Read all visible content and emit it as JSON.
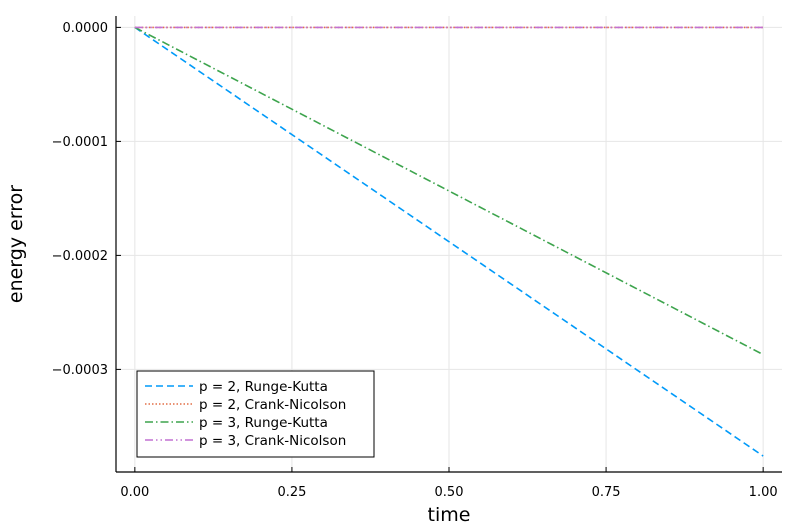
{
  "chart_data": {
    "type": "line",
    "xlabel": "time",
    "ylabel": "energy error",
    "xlim": [
      -0.03,
      1.03
    ],
    "ylim": [
      -0.00039,
      1e-05
    ],
    "xticks": [
      0.0,
      0.25,
      0.5,
      0.75,
      1.0
    ],
    "xtick_labels": [
      "0.00",
      "0.25",
      "0.50",
      "0.75",
      "1.00"
    ],
    "yticks": [
      0.0,
      -0.0001,
      -0.0002,
      -0.0003
    ],
    "ytick_labels": [
      "0.0000",
      "−0.0001",
      "−0.0002",
      "−0.0003"
    ],
    "grid": true,
    "legend_position": "bottom-left",
    "series": [
      {
        "name": "p = 2, Runge-Kutta",
        "color": "#009af9",
        "dash": "dashed",
        "x": [
          0.0,
          1.0
        ],
        "y": [
          0.0,
          -0.000376
        ]
      },
      {
        "name": "p = 2, Crank-Nicolson",
        "color": "#e26f46",
        "dash": "dotted",
        "x": [
          0.0,
          1.0
        ],
        "y": [
          0.0,
          0.0
        ]
      },
      {
        "name": "p = 3, Runge-Kutta",
        "color": "#3da44d",
        "dash": "dashdot",
        "x": [
          0.0,
          1.0
        ],
        "y": [
          0.0,
          -0.000287
        ]
      },
      {
        "name": "p = 3, Crank-Nicolson",
        "color": "#c271d2",
        "dash": "dashdotdot",
        "x": [
          0.0,
          1.0
        ],
        "y": [
          0.0,
          0.0
        ]
      }
    ]
  }
}
